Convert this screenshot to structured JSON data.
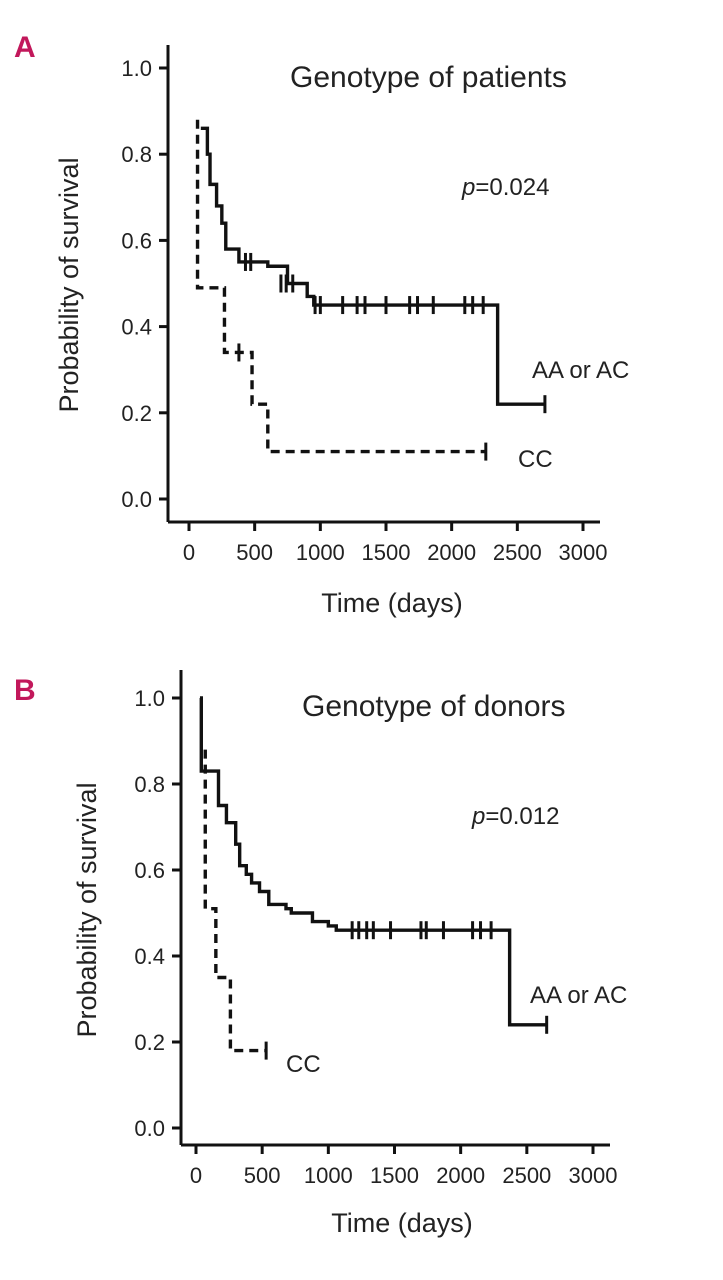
{
  "colors": {
    "panel_letter": "#c2185b",
    "line": "#111111"
  },
  "chart_data": [
    {
      "type": "line",
      "panel_label": "A",
      "title": "Genotype of patients",
      "xlabel": "Time (days)",
      "ylabel": "Probability of survival",
      "xlim": [
        0,
        3000
      ],
      "ylim": [
        0,
        1.0
      ],
      "x_ticks": [
        0,
        500,
        1000,
        1500,
        2000,
        2500,
        3000
      ],
      "y_ticks": [
        "0.0",
        "0.2",
        "0.4",
        "0.6",
        "0.8",
        "1.0"
      ],
      "y_tick_values": [
        0,
        0.2,
        0.4,
        0.6,
        0.8,
        1.0
      ],
      "annotation_italic": "p",
      "annotation_rest": "=0.024",
      "series": [
        {
          "name": "AA or AC",
          "style": "solid",
          "steps": [
            [
              90,
              0.86
            ],
            [
              140,
              0.8
            ],
            [
              160,
              0.73
            ],
            [
              210,
              0.68
            ],
            [
              250,
              0.64
            ],
            [
              280,
              0.58
            ],
            [
              380,
              0.55
            ],
            [
              600,
              0.54
            ],
            [
              750,
              0.5
            ],
            [
              900,
              0.47
            ],
            [
              950,
              0.45
            ],
            [
              2350,
              0.45
            ],
            [
              2350,
              0.22
            ],
            [
              2710,
              0.22
            ]
          ],
          "censored": [
            [
              430,
              0.55
            ],
            [
              470,
              0.55
            ],
            [
              700,
              0.5
            ],
            [
              740,
              0.5
            ],
            [
              790,
              0.5
            ],
            [
              960,
              0.45
            ],
            [
              1000,
              0.45
            ],
            [
              1170,
              0.45
            ],
            [
              1280,
              0.45
            ],
            [
              1340,
              0.45
            ],
            [
              1500,
              0.45
            ],
            [
              1680,
              0.45
            ],
            [
              1740,
              0.45
            ],
            [
              1860,
              0.45
            ],
            [
              2100,
              0.45
            ],
            [
              2160,
              0.45
            ],
            [
              2240,
              0.45
            ],
            [
              2710,
              0.22
            ]
          ]
        },
        {
          "name": "CC",
          "style": "dashed",
          "steps": [
            [
              65,
              0.88
            ],
            [
              65,
              0.49
            ],
            [
              270,
              0.49
            ],
            [
              270,
              0.34
            ],
            [
              480,
              0.34
            ],
            [
              480,
              0.22
            ],
            [
              600,
              0.22
            ],
            [
              600,
              0.11
            ],
            [
              2260,
              0.11
            ]
          ],
          "censored": [
            [
              380,
              0.34
            ],
            [
              2260,
              0.11
            ]
          ]
        }
      ]
    },
    {
      "type": "line",
      "panel_label": "B",
      "title": "Genotype of donors",
      "xlabel": "Time (days)",
      "ylabel": "Probability of survival",
      "xlim": [
        0,
        3000
      ],
      "ylim": [
        0,
        1.0
      ],
      "x_ticks": [
        0,
        500,
        1000,
        1500,
        2000,
        2500,
        3000
      ],
      "y_ticks": [
        "0.0",
        "0.2",
        "0.4",
        "0.6",
        "0.8",
        "1.0"
      ],
      "y_tick_values": [
        0,
        0.2,
        0.4,
        0.6,
        0.8,
        1.0
      ],
      "annotation_italic": "p",
      "annotation_rest": "=0.012",
      "series": [
        {
          "name": "AA or AC",
          "style": "solid",
          "steps": [
            [
              30,
              1.0
            ],
            [
              40,
              0.83
            ],
            [
              170,
              0.75
            ],
            [
              230,
              0.71
            ],
            [
              300,
              0.66
            ],
            [
              330,
              0.61
            ],
            [
              380,
              0.59
            ],
            [
              420,
              0.57
            ],
            [
              480,
              0.55
            ],
            [
              550,
              0.52
            ],
            [
              680,
              0.51
            ],
            [
              720,
              0.5
            ],
            [
              880,
              0.48
            ],
            [
              1000,
              0.47
            ],
            [
              1060,
              0.46
            ],
            [
              2370,
              0.46
            ],
            [
              2370,
              0.24
            ],
            [
              2650,
              0.24
            ]
          ],
          "censored": [
            [
              1180,
              0.46
            ],
            [
              1230,
              0.46
            ],
            [
              1290,
              0.46
            ],
            [
              1340,
              0.46
            ],
            [
              1470,
              0.46
            ],
            [
              1700,
              0.46
            ],
            [
              1740,
              0.46
            ],
            [
              1870,
              0.46
            ],
            [
              2090,
              0.46
            ],
            [
              2150,
              0.46
            ],
            [
              2230,
              0.46
            ],
            [
              2650,
              0.24
            ]
          ]
        },
        {
          "name": "CC",
          "style": "dashed",
          "steps": [
            [
              70,
              0.88
            ],
            [
              70,
              0.51
            ],
            [
              150,
              0.51
            ],
            [
              150,
              0.35
            ],
            [
              260,
              0.35
            ],
            [
              260,
              0.18
            ],
            [
              530,
              0.18
            ]
          ],
          "censored": [
            [
              530,
              0.18
            ]
          ]
        }
      ]
    }
  ]
}
